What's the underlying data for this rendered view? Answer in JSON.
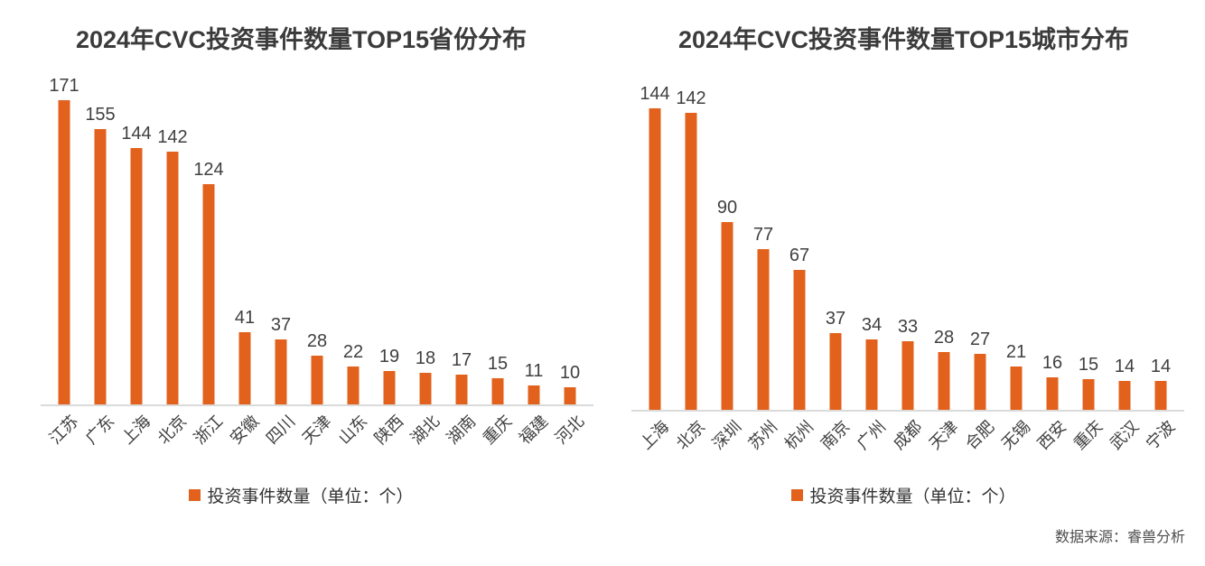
{
  "chart_data": [
    {
      "type": "bar",
      "title": "2024年CVC投资事件数量TOP15省份分布",
      "categories": [
        "江苏",
        "广东",
        "上海",
        "北京",
        "浙江",
        "安徽",
        "四川",
        "天津",
        "山东",
        "陕西",
        "湖北",
        "湖南",
        "重庆",
        "福建",
        "河北"
      ],
      "values": [
        171,
        155,
        144,
        142,
        124,
        41,
        37,
        28,
        22,
        19,
        18,
        17,
        15,
        11,
        10
      ],
      "legend": "投资事件数量（单位：个）",
      "xlabel": "",
      "ylabel": "",
      "ylim": [
        0,
        171
      ],
      "grid": false,
      "legend_position": "bottom",
      "bar_color": "#e2611c",
      "data_labels": true
    },
    {
      "type": "bar",
      "title": "2024年CVC投资事件数量TOP15城市分布",
      "categories": [
        "上海",
        "北京",
        "深圳",
        "苏州",
        "杭州",
        "南京",
        "广州",
        "成都",
        "天津",
        "合肥",
        "无锡",
        "西安",
        "重庆",
        "武汉",
        "宁波"
      ],
      "values": [
        144,
        142,
        90,
        77,
        67,
        37,
        34,
        33,
        28,
        27,
        21,
        16,
        15,
        14,
        14
      ],
      "legend": "投资事件数量（单位：个）",
      "xlabel": "",
      "ylabel": "",
      "ylim": [
        0,
        144
      ],
      "grid": false,
      "legend_position": "bottom",
      "bar_color": "#e2611c",
      "data_labels": true
    }
  ],
  "source": "数据来源：睿兽分析",
  "colors": {
    "bar": "#e2611c",
    "title_text": "#3b3b3b",
    "label_text": "#404040",
    "axis_line": "#dadada",
    "background": "#ffffff"
  }
}
